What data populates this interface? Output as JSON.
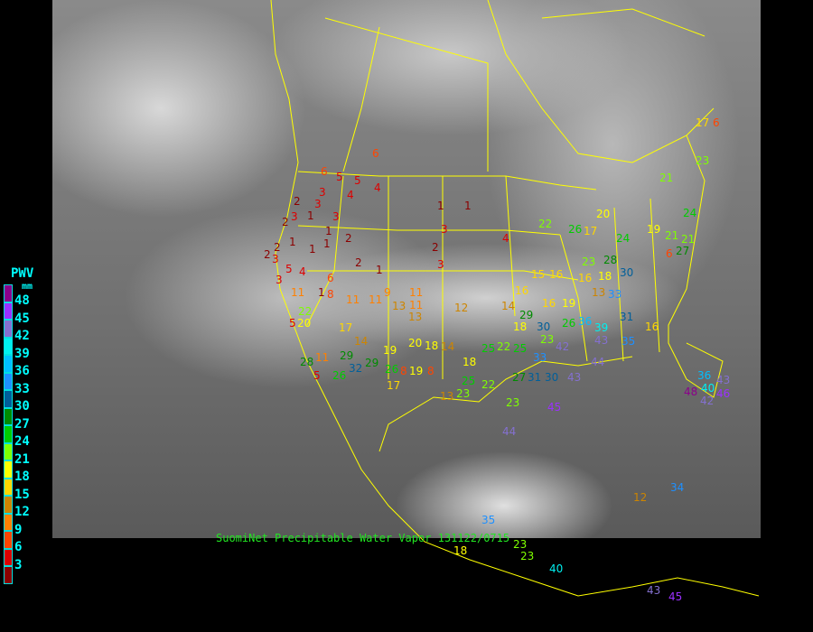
{
  "title": "SuomiNet Precipitable Water Vapor 131122/0715",
  "legend": {
    "heading": "PWV",
    "unit": "mm",
    "labels": [
      "48",
      "45",
      "42",
      "39",
      "36",
      "33",
      "30",
      "27",
      "24",
      "21",
      "18",
      "15",
      "12",
      "9",
      "6",
      "3"
    ],
    "colors": [
      "#8b008b",
      "#9b30ff",
      "#8470d0",
      "#00f0f0",
      "#00bfff",
      "#1e90ff",
      "#005f9a",
      "#008b00",
      "#00cd00",
      "#7fff00",
      "#ffff00",
      "#ffd700",
      "#cd8500",
      "#ff8000",
      "#ff4500",
      "#dd0000",
      "#8b0000"
    ]
  },
  "map": {
    "background": "GOES infrared satellite imagery",
    "boundary_color": "#ffff00"
  },
  "stations": [
    "6",
    "6",
    "5",
    "5",
    "4",
    "3",
    "2",
    "3",
    "1",
    "2",
    "3",
    "1",
    "4",
    "3",
    "1",
    "2",
    "2",
    "1",
    "1",
    "2",
    "3",
    "1",
    "1",
    "4",
    "3",
    "2",
    "3",
    "5",
    "4",
    "3",
    "1",
    "2",
    "1",
    "5",
    "6",
    "8",
    "11",
    "11",
    "9",
    "11",
    "13",
    "11",
    "12",
    "13",
    "14",
    "5",
    "8",
    "11",
    "20",
    "22",
    "17",
    "14",
    "11",
    "19",
    "20",
    "18",
    "19",
    "8",
    "17",
    "13",
    "23",
    "25",
    "29",
    "28",
    "26",
    "32",
    "29",
    "26",
    "18",
    "16",
    "15",
    "16",
    "18",
    "14",
    "16",
    "19",
    "26",
    "29",
    "23",
    "22",
    "25",
    "30",
    "36",
    "39",
    "33",
    "31",
    "30",
    "28",
    "23",
    "24",
    "26",
    "20",
    "17",
    "19",
    "21",
    "27",
    "24",
    "21",
    "23",
    "22",
    "16",
    "18",
    "16",
    "13",
    "17",
    "6",
    "6",
    "21",
    "22",
    "25",
    "27",
    "33",
    "35",
    "31",
    "30",
    "42",
    "43",
    "44",
    "43",
    "36",
    "40",
    "46",
    "43",
    "42",
    "48",
    "45",
    "44",
    "35",
    "40",
    "23",
    "23",
    "18",
    "12",
    "34",
    "43",
    "45",
    "23",
    "35",
    "41"
  ]
}
